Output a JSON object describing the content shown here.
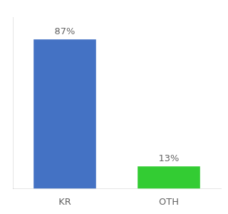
{
  "chart_data": {
    "type": "bar",
    "categories": [
      "KR",
      "OTH"
    ],
    "values": [
      87,
      13
    ],
    "value_labels": [
      "87%",
      "13%"
    ],
    "data_labels": true,
    "colors": [
      "#4472c4",
      "#33cc33"
    ],
    "ylim": [
      0,
      100
    ],
    "grid": false,
    "tick_labels": "x"
  }
}
